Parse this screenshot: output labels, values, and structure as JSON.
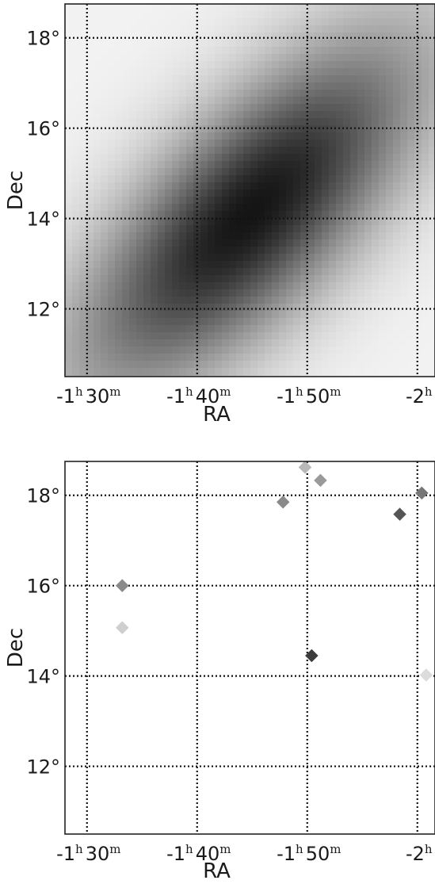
{
  "chart_data": [
    {
      "type": "heatmap",
      "title": "",
      "xlabel": "RA",
      "ylabel": "Dec",
      "x_ticks": [
        {
          "value": 22.5,
          "h": "-1",
          "h_unit": "h",
          "m": "30",
          "m_unit": "m"
        },
        {
          "value": 25.0,
          "h": "-1",
          "h_unit": "h",
          "m": "40",
          "m_unit": "m"
        },
        {
          "value": 27.5,
          "h": "-1",
          "h_unit": "h",
          "m": "50",
          "m_unit": "m"
        },
        {
          "value": 30.0,
          "h": "-2",
          "h_unit": "h",
          "m": "",
          "m_unit": ""
        }
      ],
      "y_ticks": [
        {
          "value": 12,
          "label": "12°"
        },
        {
          "value": 14,
          "label": "14°"
        },
        {
          "value": 16,
          "label": "16°"
        },
        {
          "value": 18,
          "label": "18°"
        }
      ],
      "xlim": [
        22.0,
        30.4
      ],
      "ylim": [
        10.5,
        18.75
      ],
      "grid": true,
      "colormap": "gray (dark = high)",
      "field": {
        "peak_ra": 26.2,
        "peak_dec": 14.1,
        "major_axis_direction": "diagonal, rising toward larger RA and higher Dec",
        "sigma_major_deg": 3.6,
        "sigma_minor_deg": 1.45,
        "max_intensity": 0.92,
        "background_intensity": 0.05
      }
    },
    {
      "type": "scatter",
      "title": "",
      "xlabel": "RA",
      "ylabel": "Dec",
      "marker": "diamond",
      "x_ticks": [
        {
          "value": 22.5,
          "h": "-1",
          "h_unit": "h",
          "m": "30",
          "m_unit": "m"
        },
        {
          "value": 25.0,
          "h": "-1",
          "h_unit": "h",
          "m": "40",
          "m_unit": "m"
        },
        {
          "value": 27.5,
          "h": "-1",
          "h_unit": "h",
          "m": "50",
          "m_unit": "m"
        },
        {
          "value": 30.0,
          "h": "-2",
          "h_unit": "h",
          "m": "",
          "m_unit": ""
        }
      ],
      "y_ticks": [
        {
          "value": 12,
          "label": "12°"
        },
        {
          "value": 14,
          "label": "14°"
        },
        {
          "value": 16,
          "label": "16°"
        },
        {
          "value": 18,
          "label": "18°"
        }
      ],
      "xlim": [
        22.0,
        30.4
      ],
      "ylim": [
        10.5,
        18.75
      ],
      "grid": true,
      "points": [
        {
          "ra": 23.3,
          "dec": 16.0,
          "shade": "#8a8a8a"
        },
        {
          "ra": 23.3,
          "dec": 15.07,
          "shade": "#cfcfcf"
        },
        {
          "ra": 26.95,
          "dec": 17.85,
          "shade": "#8a8a8a"
        },
        {
          "ra": 27.45,
          "dec": 18.62,
          "shade": "#b8b8b8"
        },
        {
          "ra": 27.8,
          "dec": 18.33,
          "shade": "#9a9a9a"
        },
        {
          "ra": 27.6,
          "dec": 14.45,
          "shade": "#3c3c3c"
        },
        {
          "ra": 30.1,
          "dec": 18.05,
          "shade": "#777777"
        },
        {
          "ra": 29.6,
          "dec": 17.58,
          "shade": "#555555"
        },
        {
          "ra": 30.2,
          "dec": 14.02,
          "shade": "#dcdcdc"
        }
      ]
    }
  ]
}
